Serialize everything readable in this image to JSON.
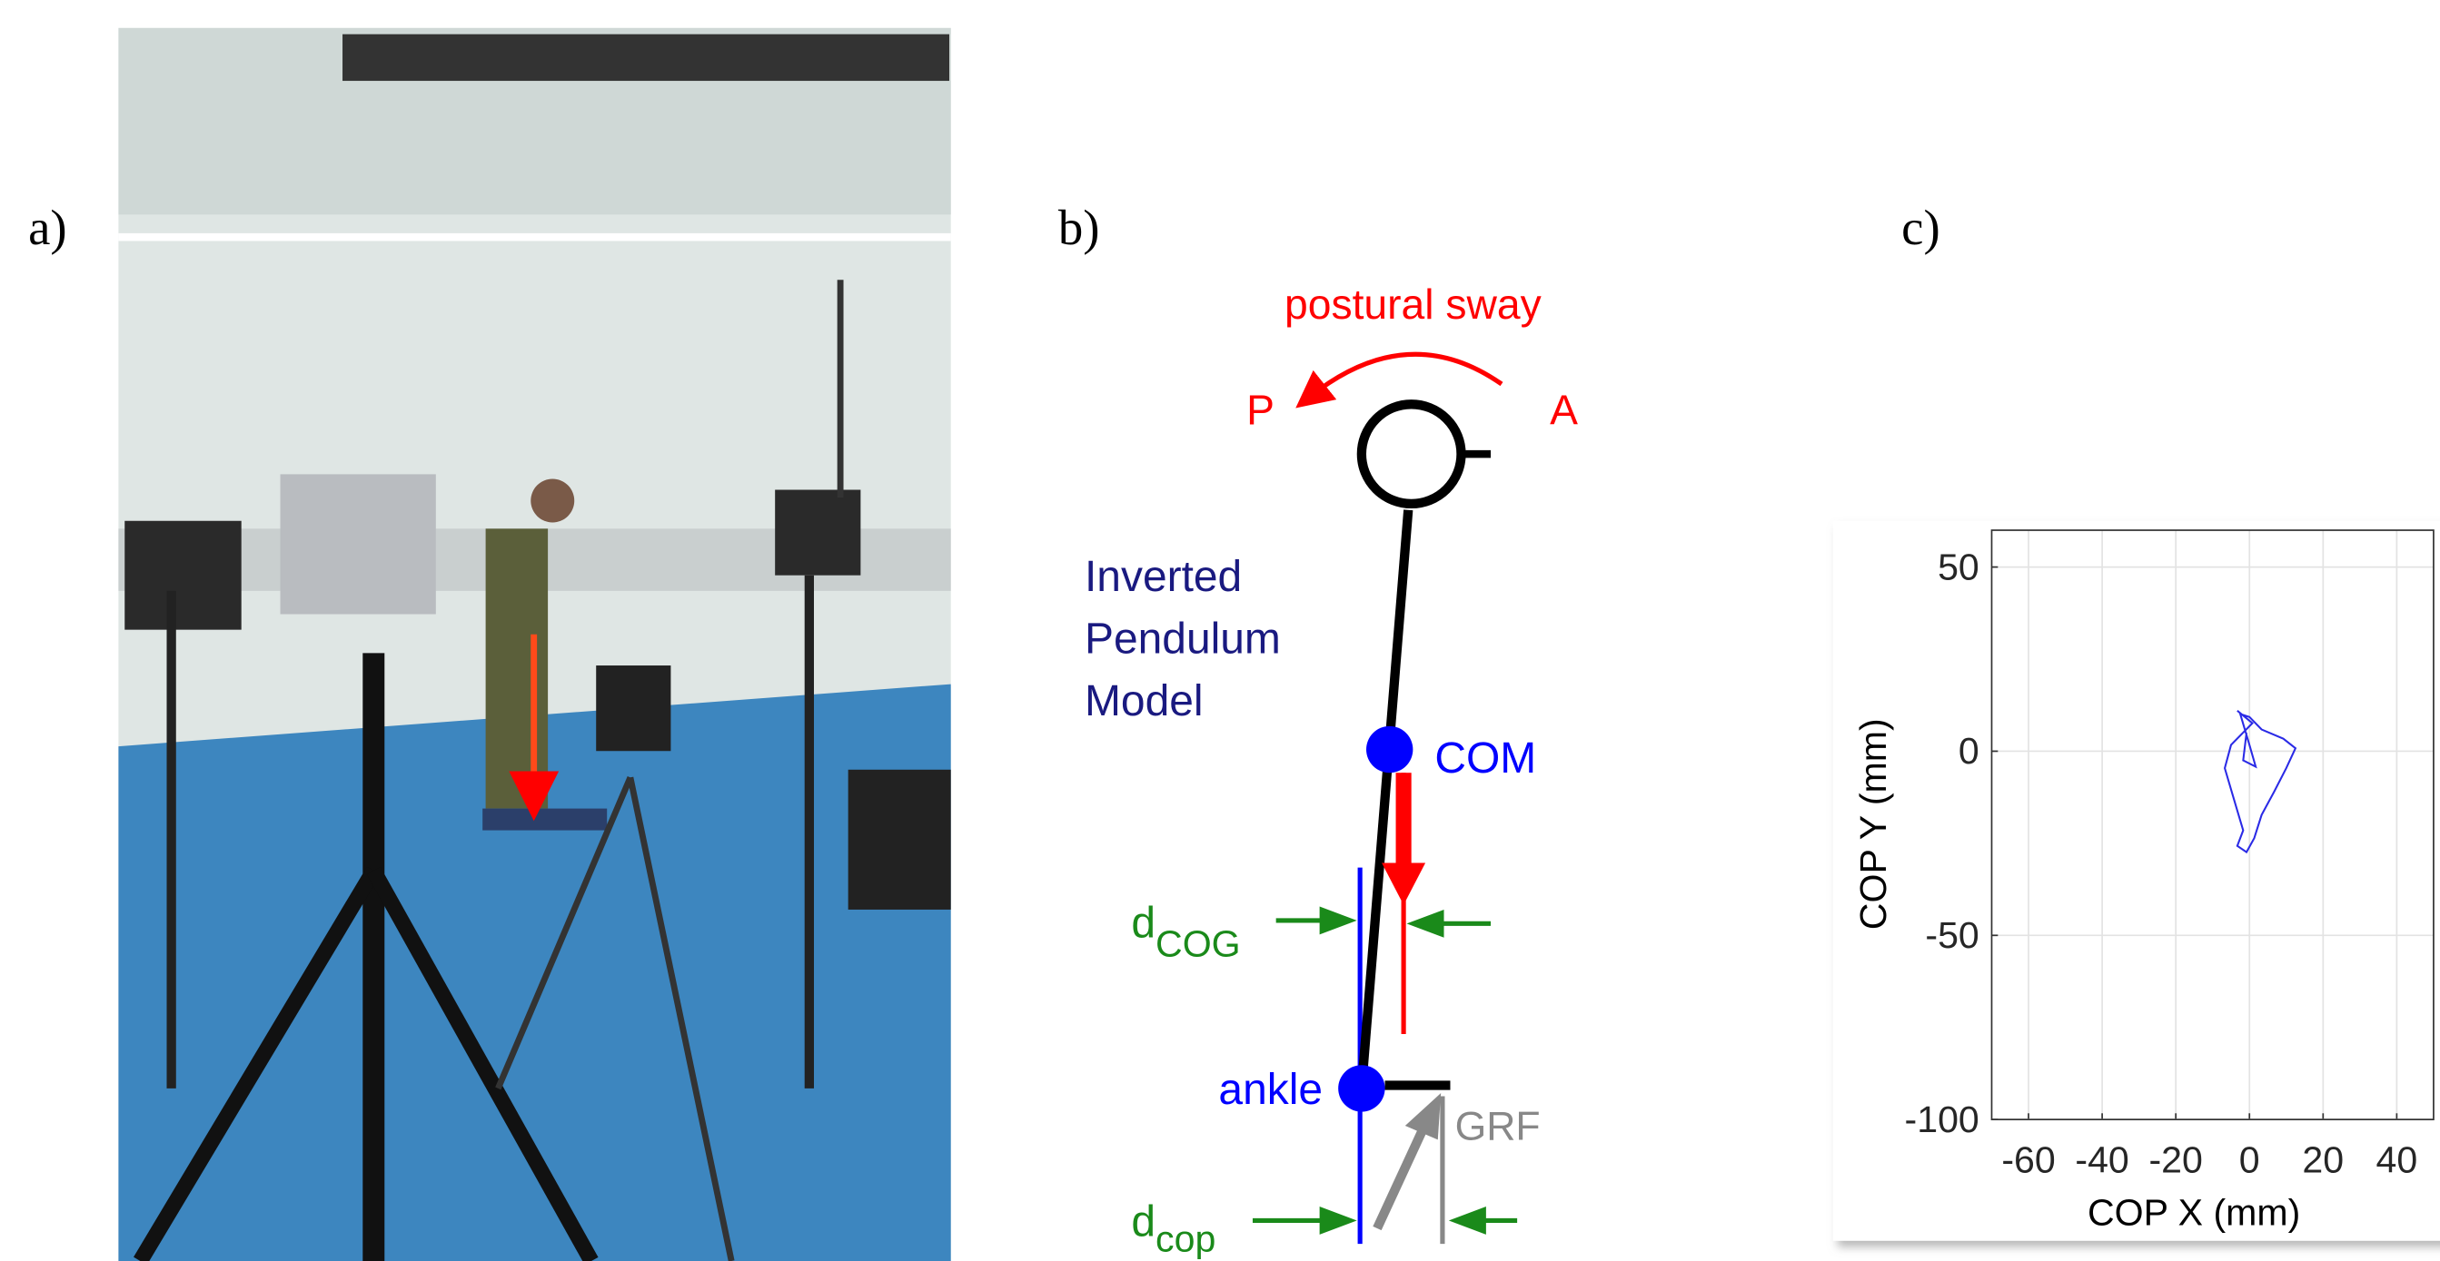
{
  "panel_labels": [
    "a)",
    "b)",
    "c)"
  ],
  "diagram": {
    "sway": "postural sway",
    "p": "P",
    "a": "A",
    "model": [
      "Inverted",
      "Pendulum",
      "Model"
    ],
    "com": "COM",
    "ankle": "ankle",
    "grf": "GRF",
    "d_cog": {
      "main": "d",
      "sub": "COG"
    },
    "d_cop": {
      "main": "d",
      "sub": "cop"
    }
  },
  "chart_data": {
    "type": "line",
    "xlabel": "COP X (mm)",
    "ylabel": "COP Y (mm)",
    "x": [
      -3.3,
      0.8,
      -5,
      -6.7,
      -4.2,
      -1.7,
      -3.3,
      -0.8,
      1.3,
      3.3,
      6.7,
      10,
      12.5,
      9.2,
      3.3,
      0,
      -2.5,
      0,
      1.7,
      -1.7,
      -0.8
    ],
    "series": [
      {
        "color": "#2a2ae6",
        "values": [
          11,
          7.6,
          1.7,
          -4.6,
          -13.1,
          -21.5,
          -25.7,
          -27.4,
          -23.6,
          -17.3,
          -11,
          -4.6,
          0.8,
          3.4,
          5.9,
          9.3,
          10.1,
          1.7,
          -4.2,
          -2.5,
          5
        ]
      }
    ],
    "xlim": [
      -70,
      50
    ],
    "ylim": [
      -100,
      60
    ],
    "xticks": [
      -60,
      -40,
      -20,
      0,
      20,
      40
    ],
    "yticks": [
      -100,
      -50,
      0,
      50
    ],
    "grid": true
  }
}
